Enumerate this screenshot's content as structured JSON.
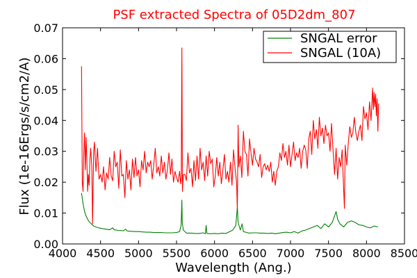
{
  "chart_data": {
    "type": "line",
    "title": "PSF extracted Spectra of 05D2dm_807",
    "xlabel": "Wavelength (Ang.)",
    "ylabel": "Flux (1e-16Ergs/s/cm2/A)",
    "xlim": [
      4000,
      8500
    ],
    "ylim": [
      0,
      0.07
    ],
    "x_ticks": [
      "4000",
      "4500",
      "5000",
      "5500",
      "6000",
      "6500",
      "7000",
      "7500",
      "8000",
      "8500"
    ],
    "y_ticks": [
      "0.00",
      "0.01",
      "0.02",
      "0.03",
      "0.04",
      "0.05",
      "0.06",
      "0.07"
    ],
    "grid": false,
    "legend_position": "top-right",
    "title_color": "#ff0000",
    "series": [
      {
        "name": "SNGAL error",
        "color": "#008000",
        "points": [
          [
            4250,
            0.0165
          ],
          [
            4270,
            0.013
          ],
          [
            4290,
            0.0105
          ],
          [
            4310,
            0.009
          ],
          [
            4330,
            0.008
          ],
          [
            4350,
            0.0072
          ],
          [
            4380,
            0.0065
          ],
          [
            4410,
            0.0058
          ],
          [
            4440,
            0.0055
          ],
          [
            4480,
            0.0052
          ],
          [
            4520,
            0.005
          ],
          [
            4570,
            0.0048
          ],
          [
            4620,
            0.0046
          ],
          [
            4660,
            0.0052
          ],
          [
            4680,
            0.0046
          ],
          [
            4730,
            0.0044
          ],
          [
            4800,
            0.0043
          ],
          [
            4830,
            0.0048
          ],
          [
            4850,
            0.0042
          ],
          [
            4900,
            0.0041
          ],
          [
            4950,
            0.004
          ],
          [
            5000,
            0.004
          ],
          [
            5050,
            0.0039
          ],
          [
            5100,
            0.0038
          ],
          [
            5150,
            0.0038
          ],
          [
            5200,
            0.0037
          ],
          [
            5250,
            0.0037
          ],
          [
            5300,
            0.0037
          ],
          [
            5350,
            0.0036
          ],
          [
            5400,
            0.0036
          ],
          [
            5450,
            0.0036
          ],
          [
            5500,
            0.0037
          ],
          [
            5540,
            0.004
          ],
          [
            5560,
            0.006
          ],
          [
            5570,
            0.0142
          ],
          [
            5575,
            0.007
          ],
          [
            5590,
            0.0045
          ],
          [
            5630,
            0.0035
          ],
          [
            5700,
            0.0035
          ],
          [
            5750,
            0.0034
          ],
          [
            5800,
            0.0034
          ],
          [
            5850,
            0.0036
          ],
          [
            5880,
            0.0033
          ],
          [
            5890,
            0.006
          ],
          [
            5900,
            0.0034
          ],
          [
            5950,
            0.0033
          ],
          [
            6000,
            0.0034
          ],
          [
            6050,
            0.0033
          ],
          [
            6100,
            0.0035
          ],
          [
            6150,
            0.0034
          ],
          [
            6200,
            0.004
          ],
          [
            6240,
            0.0045
          ],
          [
            6280,
            0.006
          ],
          [
            6300,
            0.012
          ],
          [
            6310,
            0.007
          ],
          [
            6340,
            0.0045
          ],
          [
            6363,
            0.0065
          ],
          [
            6380,
            0.004
          ],
          [
            6450,
            0.0035
          ],
          [
            6500,
            0.0036
          ],
          [
            6550,
            0.0036
          ],
          [
            6600,
            0.0035
          ],
          [
            6650,
            0.0035
          ],
          [
            6700,
            0.0034
          ],
          [
            6750,
            0.0035
          ],
          [
            6800,
            0.0033
          ],
          [
            6850,
            0.0035
          ],
          [
            6900,
            0.0037
          ],
          [
            6950,
            0.0038
          ],
          [
            7000,
            0.0036
          ],
          [
            7050,
            0.004
          ],
          [
            7100,
            0.0035
          ],
          [
            7150,
            0.0042
          ],
          [
            7200,
            0.0045
          ],
          [
            7250,
            0.005
          ],
          [
            7300,
            0.0055
          ],
          [
            7350,
            0.006
          ],
          [
            7400,
            0.005
          ],
          [
            7450,
            0.0065
          ],
          [
            7500,
            0.0055
          ],
          [
            7550,
            0.007
          ],
          [
            7600,
            0.0105
          ],
          [
            7620,
            0.008
          ],
          [
            7650,
            0.0065
          ],
          [
            7700,
            0.0055
          ],
          [
            7750,
            0.007
          ],
          [
            7800,
            0.0075
          ],
          [
            7850,
            0.007
          ],
          [
            7900,
            0.0062
          ],
          [
            7950,
            0.006
          ],
          [
            8000,
            0.0055
          ],
          [
            8050,
            0.0052
          ],
          [
            8100,
            0.0058
          ],
          [
            8150,
            0.0055
          ]
        ]
      },
      {
        "name": "SNGAL (10A)",
        "color": "#ff0000",
        "points": [
          [
            4250,
            0.0575
          ],
          [
            4260,
            0.02
          ],
          [
            4270,
            0.017
          ],
          [
            4280,
            0.0295
          ],
          [
            4290,
            0.036
          ],
          [
            4300,
            0.024
          ],
          [
            4310,
            0.0345
          ],
          [
            4320,
            0.027
          ],
          [
            4330,
            0.017
          ],
          [
            4340,
            0.0225
          ],
          [
            4350,
            0.019
          ],
          [
            4360,
            0.0275
          ],
          [
            4370,
            0.031
          ],
          [
            4385,
            0.025
          ],
          [
            4395,
            0.0065
          ],
          [
            4410,
            0.03
          ],
          [
            4420,
            0.033
          ],
          [
            4440,
            0.0235
          ],
          [
            4460,
            0.031
          ],
          [
            4480,
            0.021
          ],
          [
            4500,
            0.0225
          ],
          [
            4520,
            0.02
          ],
          [
            4540,
            0.025
          ],
          [
            4560,
            0.0175
          ],
          [
            4580,
            0.023
          ],
          [
            4600,
            0.021
          ],
          [
            4620,
            0.028
          ],
          [
            4640,
            0.022
          ],
          [
            4660,
            0.0205
          ],
          [
            4680,
            0.03
          ],
          [
            4700,
            0.025
          ],
          [
            4720,
            0.0265
          ],
          [
            4740,
            0.018
          ],
          [
            4760,
            0.0305
          ],
          [
            4780,
            0.022
          ],
          [
            4800,
            0.0225
          ],
          [
            4820,
            0.015
          ],
          [
            4840,
            0.027
          ],
          [
            4860,
            0.021
          ],
          [
            4880,
            0.024
          ],
          [
            4900,
            0.0175
          ],
          [
            4920,
            0.0275
          ],
          [
            4940,
            0.0215
          ],
          [
            4960,
            0.028
          ],
          [
            4980,
            0.022
          ],
          [
            5000,
            0.024
          ],
          [
            5020,
            0.0185
          ],
          [
            5040,
            0.027
          ],
          [
            5060,
            0.024
          ],
          [
            5080,
            0.03
          ],
          [
            5100,
            0.023
          ],
          [
            5120,
            0.0265
          ],
          [
            5140,
            0.025
          ],
          [
            5160,
            0.027
          ],
          [
            5180,
            0.021
          ],
          [
            5200,
            0.0255
          ],
          [
            5220,
            0.031
          ],
          [
            5240,
            0.023
          ],
          [
            5260,
            0.025
          ],
          [
            5280,
            0.022
          ],
          [
            5300,
            0.0285
          ],
          [
            5320,
            0.023
          ],
          [
            5340,
            0.0265
          ],
          [
            5360,
            0.021
          ],
          [
            5380,
            0.024
          ],
          [
            5400,
            0.0295
          ],
          [
            5420,
            0.0225
          ],
          [
            5440,
            0.0275
          ],
          [
            5460,
            0.02
          ],
          [
            5480,
            0.0235
          ],
          [
            5500,
            0.0215
          ],
          [
            5520,
            0.02
          ],
          [
            5540,
            0.0235
          ],
          [
            5555,
            0.0195
          ],
          [
            5562,
            0.0215
          ],
          [
            5570,
            0.0635
          ],
          [
            5578,
            0.017
          ],
          [
            5590,
            0.0225
          ],
          [
            5610,
            0.0225
          ],
          [
            5630,
            0.0205
          ],
          [
            5650,
            0.0295
          ],
          [
            5670,
            0.023
          ],
          [
            5690,
            0.0245
          ],
          [
            5710,
            0.0185
          ],
          [
            5730,
            0.027
          ],
          [
            5750,
            0.0205
          ],
          [
            5770,
            0.0285
          ],
          [
            5790,
            0.021
          ],
          [
            5810,
            0.031
          ],
          [
            5830,
            0.024
          ],
          [
            5850,
            0.0265
          ],
          [
            5870,
            0.0205
          ],
          [
            5890,
            0.0285
          ],
          [
            5910,
            0.022
          ],
          [
            5930,
            0.03
          ],
          [
            5950,
            0.026
          ],
          [
            5970,
            0.0275
          ],
          [
            5990,
            0.0185
          ],
          [
            6010,
            0.022
          ],
          [
            6030,
            0.028
          ],
          [
            6050,
            0.022
          ],
          [
            6070,
            0.0265
          ],
          [
            6090,
            0.0195
          ],
          [
            6110,
            0.024
          ],
          [
            6130,
            0.029
          ],
          [
            6150,
            0.021
          ],
          [
            6170,
            0.0235
          ],
          [
            6190,
            0.02
          ],
          [
            6210,
            0.0265
          ],
          [
            6230,
            0.019
          ],
          [
            6250,
            0.0305
          ],
          [
            6270,
            0.0245
          ],
          [
            6290,
            0.02
          ],
          [
            6300,
            0.011
          ],
          [
            6310,
            0.0385
          ],
          [
            6320,
            0.025
          ],
          [
            6340,
            0.0285
          ],
          [
            6360,
            0.0215
          ],
          [
            6380,
            0.0365
          ],
          [
            6400,
            0.03
          ],
          [
            6420,
            0.029
          ],
          [
            6440,
            0.022
          ],
          [
            6460,
            0.034
          ],
          [
            6480,
            0.0295
          ],
          [
            6500,
            0.0255
          ],
          [
            6520,
            0.031
          ],
          [
            6540,
            0.0275
          ],
          [
            6560,
            0.0265
          ],
          [
            6580,
            0.025
          ],
          [
            6600,
            0.029
          ],
          [
            6620,
            0.0215
          ],
          [
            6640,
            0.025
          ],
          [
            6660,
            0.026
          ],
          [
            6680,
            0.024
          ],
          [
            6700,
            0.0255
          ],
          [
            6720,
            0.0235
          ],
          [
            6740,
            0.0265
          ],
          [
            6760,
            0.02
          ],
          [
            6780,
            0.0235
          ],
          [
            6800,
            0.019
          ],
          [
            6820,
            0.0235
          ],
          [
            6840,
            0.025
          ],
          [
            6860,
            0.0295
          ],
          [
            6880,
            0.027
          ],
          [
            6900,
            0.0325
          ],
          [
            6920,
            0.028
          ],
          [
            6940,
            0.03
          ],
          [
            6960,
            0.0255
          ],
          [
            6980,
            0.032
          ],
          [
            7000,
            0.025
          ],
          [
            7020,
            0.029
          ],
          [
            7040,
            0.033
          ],
          [
            7060,
            0.027
          ],
          [
            7080,
            0.0295
          ],
          [
            7100,
            0.028
          ],
          [
            7120,
            0.031
          ],
          [
            7140,
            0.0245
          ],
          [
            7160,
            0.03
          ],
          [
            7180,
            0.032
          ],
          [
            7200,
            0.0305
          ],
          [
            7220,
            0.0245
          ],
          [
            7240,
            0.034
          ],
          [
            7260,
            0.0365
          ],
          [
            7280,
            0.029
          ],
          [
            7300,
            0.04
          ],
          [
            7320,
            0.034
          ],
          [
            7340,
            0.037
          ],
          [
            7360,
            0.031
          ],
          [
            7380,
            0.041
          ],
          [
            7400,
            0.035
          ],
          [
            7420,
            0.0375
          ],
          [
            7440,
            0.0325
          ],
          [
            7460,
            0.0385
          ],
          [
            7480,
            0.035
          ],
          [
            7500,
            0.036
          ],
          [
            7520,
            0.03
          ],
          [
            7540,
            0.039
          ],
          [
            7560,
            0.0305
          ],
          [
            7580,
            0.0225
          ],
          [
            7600,
            0.031
          ],
          [
            7620,
            0.021
          ],
          [
            7640,
            0.028
          ],
          [
            7660,
            0.025
          ],
          [
            7680,
            0.0305
          ],
          [
            7700,
            0.0175
          ],
          [
            7710,
            0.0115
          ],
          [
            7720,
            0.032
          ],
          [
            7740,
            0.0255
          ],
          [
            7760,
            0.0325
          ],
          [
            7780,
            0.038
          ],
          [
            7800,
            0.0345
          ],
          [
            7820,
            0.036
          ],
          [
            7840,
            0.041
          ],
          [
            7860,
            0.036
          ],
          [
            7880,
            0.0335
          ],
          [
            7900,
            0.0365
          ],
          [
            7920,
            0.0385
          ],
          [
            7940,
            0.0335
          ],
          [
            7960,
            0.0445
          ],
          [
            7980,
            0.0405
          ],
          [
            8000,
            0.0425
          ],
          [
            8020,
            0.037
          ],
          [
            8040,
            0.046
          ],
          [
            8060,
            0.04
          ],
          [
            8080,
            0.0505
          ],
          [
            8090,
            0.0435
          ],
          [
            8100,
            0.049
          ],
          [
            8110,
            0.0445
          ],
          [
            8120,
            0.0485
          ],
          [
            8130,
            0.0415
          ],
          [
            8140,
            0.047
          ],
          [
            8150,
            0.0365
          ],
          [
            8160,
            0.0455
          ]
        ]
      }
    ]
  }
}
